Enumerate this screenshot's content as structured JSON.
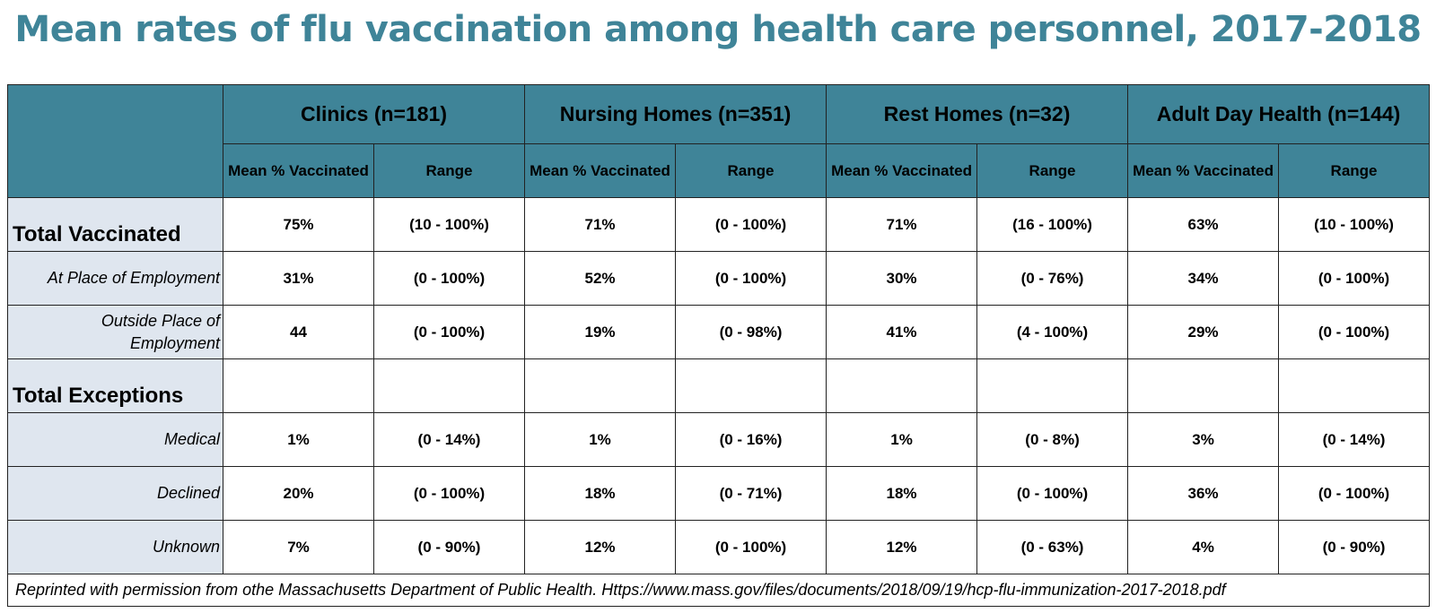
{
  "chart_data": {
    "type": "table",
    "title": "Mean rates of flu vaccination among health care personnel, 2017-2018",
    "groups": [
      "Clinics (n=181)",
      "Nursing Homes (n=351)",
      "Rest Homes (n=32)",
      "Adult Day Health (n=144)"
    ],
    "subheaders": {
      "mean": "Mean % Vaccinated",
      "range": "Range"
    },
    "rows": [
      {
        "label": "Total Vaccinated",
        "style": "main",
        "cells": [
          "75%",
          "(10 - 100%)",
          "71%",
          "(0 - 100%)",
          "71%",
          "(16 - 100%)",
          "63%",
          "(10 - 100%)"
        ]
      },
      {
        "label": "At Place of Employment",
        "style": "sub",
        "cells": [
          "31%",
          "(0 - 100%)",
          "52%",
          "(0 - 100%)",
          "30%",
          "(0 - 76%)",
          "34%",
          "(0 - 100%)"
        ]
      },
      {
        "label": "Outside Place of Employment",
        "style": "sub",
        "cells": [
          "44",
          "(0 - 100%)",
          "19%",
          "(0 - 98%)",
          "41%",
          "(4 - 100%)",
          "29%",
          "(0 - 100%)"
        ]
      },
      {
        "label": "Total Exceptions",
        "style": "main",
        "cells": [
          "",
          "",
          "",
          "",
          "",
          "",
          "",
          ""
        ]
      },
      {
        "label": "Medical",
        "style": "sub",
        "cells": [
          "1%",
          "(0 - 14%)",
          "1%",
          "(0 - 16%)",
          "1%",
          "(0 - 8%)",
          "3%",
          "(0 - 14%)"
        ]
      },
      {
        "label": "Declined",
        "style": "sub",
        "cells": [
          "20%",
          "(0 - 100%)",
          "18%",
          "(0 - 71%)",
          "18%",
          "(0 - 100%)",
          "36%",
          "(0 - 100%)"
        ]
      },
      {
        "label": "Unknown",
        "style": "sub",
        "cells": [
          "7%",
          "(0 - 90%)",
          "12%",
          "(0 - 100%)",
          "12%",
          "(0 - 63%)",
          "4%",
          "(0 - 90%)"
        ]
      }
    ],
    "source": "Reprinted with permission from othe Massachusetts Department of Public Health. Https://www.mass.gov/files/documents/2018/09/19/hcp-flu-immunization-2017-2018.pdf"
  },
  "colors": {
    "header_bg": "#3f8498",
    "title": "#3f8498",
    "label_bg": "#dfe6ef"
  }
}
